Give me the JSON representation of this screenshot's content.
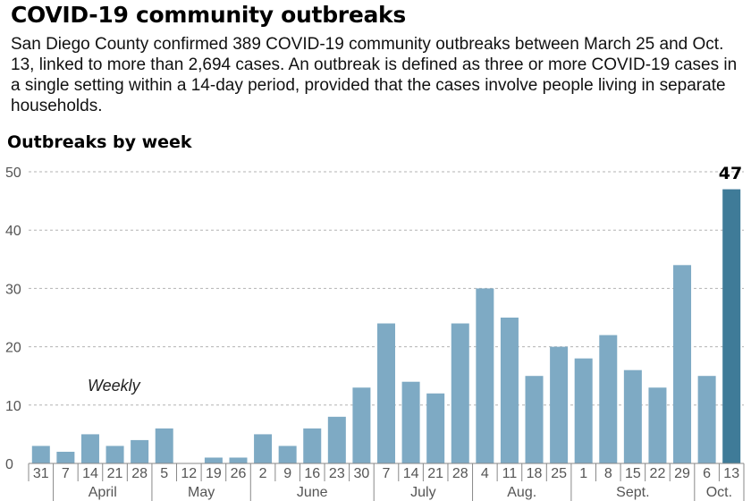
{
  "header": {
    "title": "COVID-19 community outbreaks",
    "subtitle": "San Diego County confirmed 389 COVID-19 community outbreaks between March 25 and Oct. 13, linked to more than 2,694 cases. An outbreak is defined as three or more COVID-19 cases in a single setting within a 14-day period, provided that the cases involve people living in separate households.",
    "chart_heading": "Outbreaks by week"
  },
  "chart_data": {
    "type": "bar",
    "title": "Outbreaks by week",
    "categories": [
      "31",
      "7",
      "14",
      "21",
      "28",
      "5",
      "12",
      "19",
      "26",
      "2",
      "9",
      "16",
      "23",
      "30",
      "7",
      "14",
      "21",
      "28",
      "4",
      "11",
      "18",
      "25",
      "1",
      "8",
      "15",
      "22",
      "29",
      "6",
      "13"
    ],
    "values": [
      3,
      2,
      5,
      3,
      4,
      6,
      0,
      1,
      1,
      5,
      3,
      6,
      8,
      13,
      24,
      14,
      12,
      24,
      30,
      25,
      15,
      20,
      18,
      22,
      16,
      13,
      34,
      15,
      47
    ],
    "months": [
      {
        "label": "April",
        "start": 1,
        "end": 4
      },
      {
        "label": "May",
        "start": 5,
        "end": 8
      },
      {
        "label": "June",
        "start": 9,
        "end": 13
      },
      {
        "label": "July",
        "start": 14,
        "end": 17
      },
      {
        "label": "Aug.",
        "start": 18,
        "end": 21
      },
      {
        "label": "Sept.",
        "start": 22,
        "end": 26
      },
      {
        "label": "Oct.",
        "start": 27,
        "end": 28
      }
    ],
    "ylim": [
      0,
      50
    ],
    "yticks": [
      0,
      10,
      20,
      30,
      40,
      50
    ],
    "grid": true,
    "annotation": "Weekly",
    "callout": "47",
    "colors": {
      "bar": "#7eaac4",
      "highlight": "#3f7b98",
      "grid": "#b3b3b3",
      "axis": "#888888"
    }
  }
}
